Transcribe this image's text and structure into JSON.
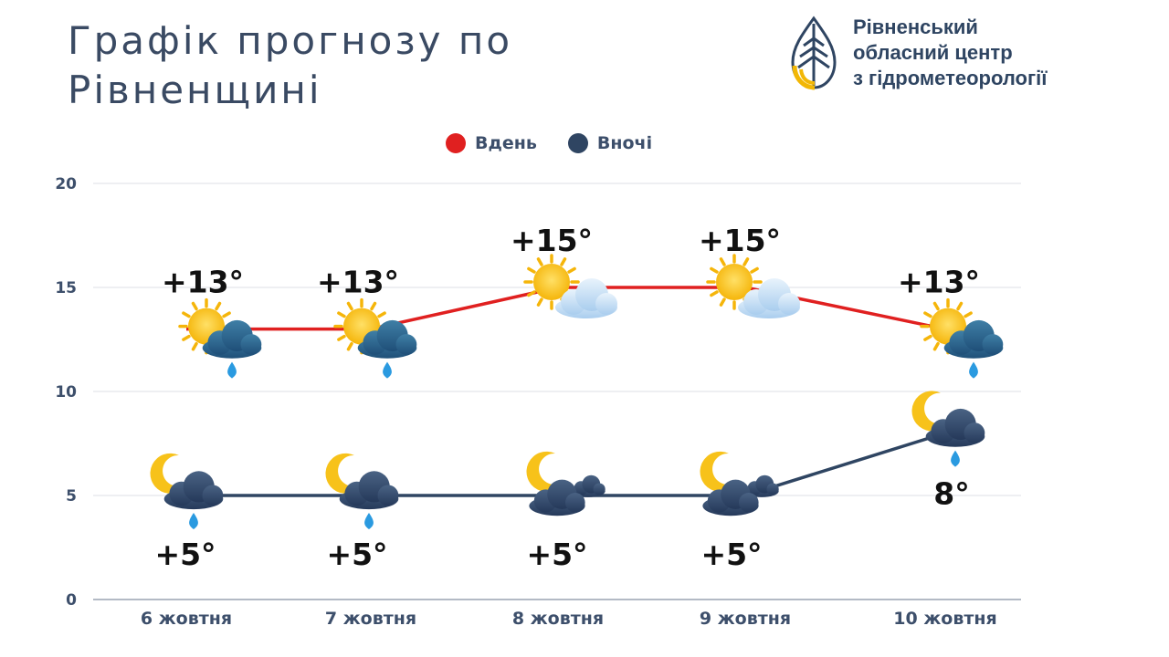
{
  "title": "Графік прогнозу по Рівненщині",
  "organization": {
    "lines": [
      "Рівненський",
      "обласний центр",
      "з гідрометеорології"
    ],
    "logo_icon": "water-drop-leaf-icon",
    "text_color": "#2f4562",
    "logo_colors": [
      "#2f4562",
      "#f2b705"
    ]
  },
  "chart_data": {
    "type": "line",
    "categories": [
      "6 жовтня",
      "7 жовтня",
      "8 жовтня",
      "9 жовтня",
      "10 жовтня"
    ],
    "series": [
      {
        "name": "Вдень",
        "color": "#e02020",
        "values": [
          13,
          13,
          15,
          15,
          13
        ],
        "labels": [
          "+13°",
          "+13°",
          "+15°",
          "+15°",
          "+13°"
        ],
        "icons": [
          "sun-rain-cloud-icon",
          "sun-rain-cloud-icon",
          "sun-cloud-icon",
          "sun-cloud-icon",
          "sun-rain-cloud-icon"
        ]
      },
      {
        "name": "Вночі",
        "color": "#2f4562",
        "values": [
          5,
          5,
          5,
          5,
          8
        ],
        "labels": [
          "+5°",
          "+5°",
          "+5°",
          "+5°",
          "8°"
        ],
        "icons": [
          "moon-rain-cloud-icon",
          "moon-rain-cloud-icon",
          "moon-cloud-icon",
          "moon-cloud-icon",
          "moon-rain-cloud-icon"
        ]
      }
    ],
    "ylim": [
      0,
      20
    ],
    "yticks": [
      0,
      5,
      10,
      15,
      20
    ],
    "grid": true,
    "legend_position": "top-center",
    "xlabel": "",
    "ylabel": ""
  }
}
